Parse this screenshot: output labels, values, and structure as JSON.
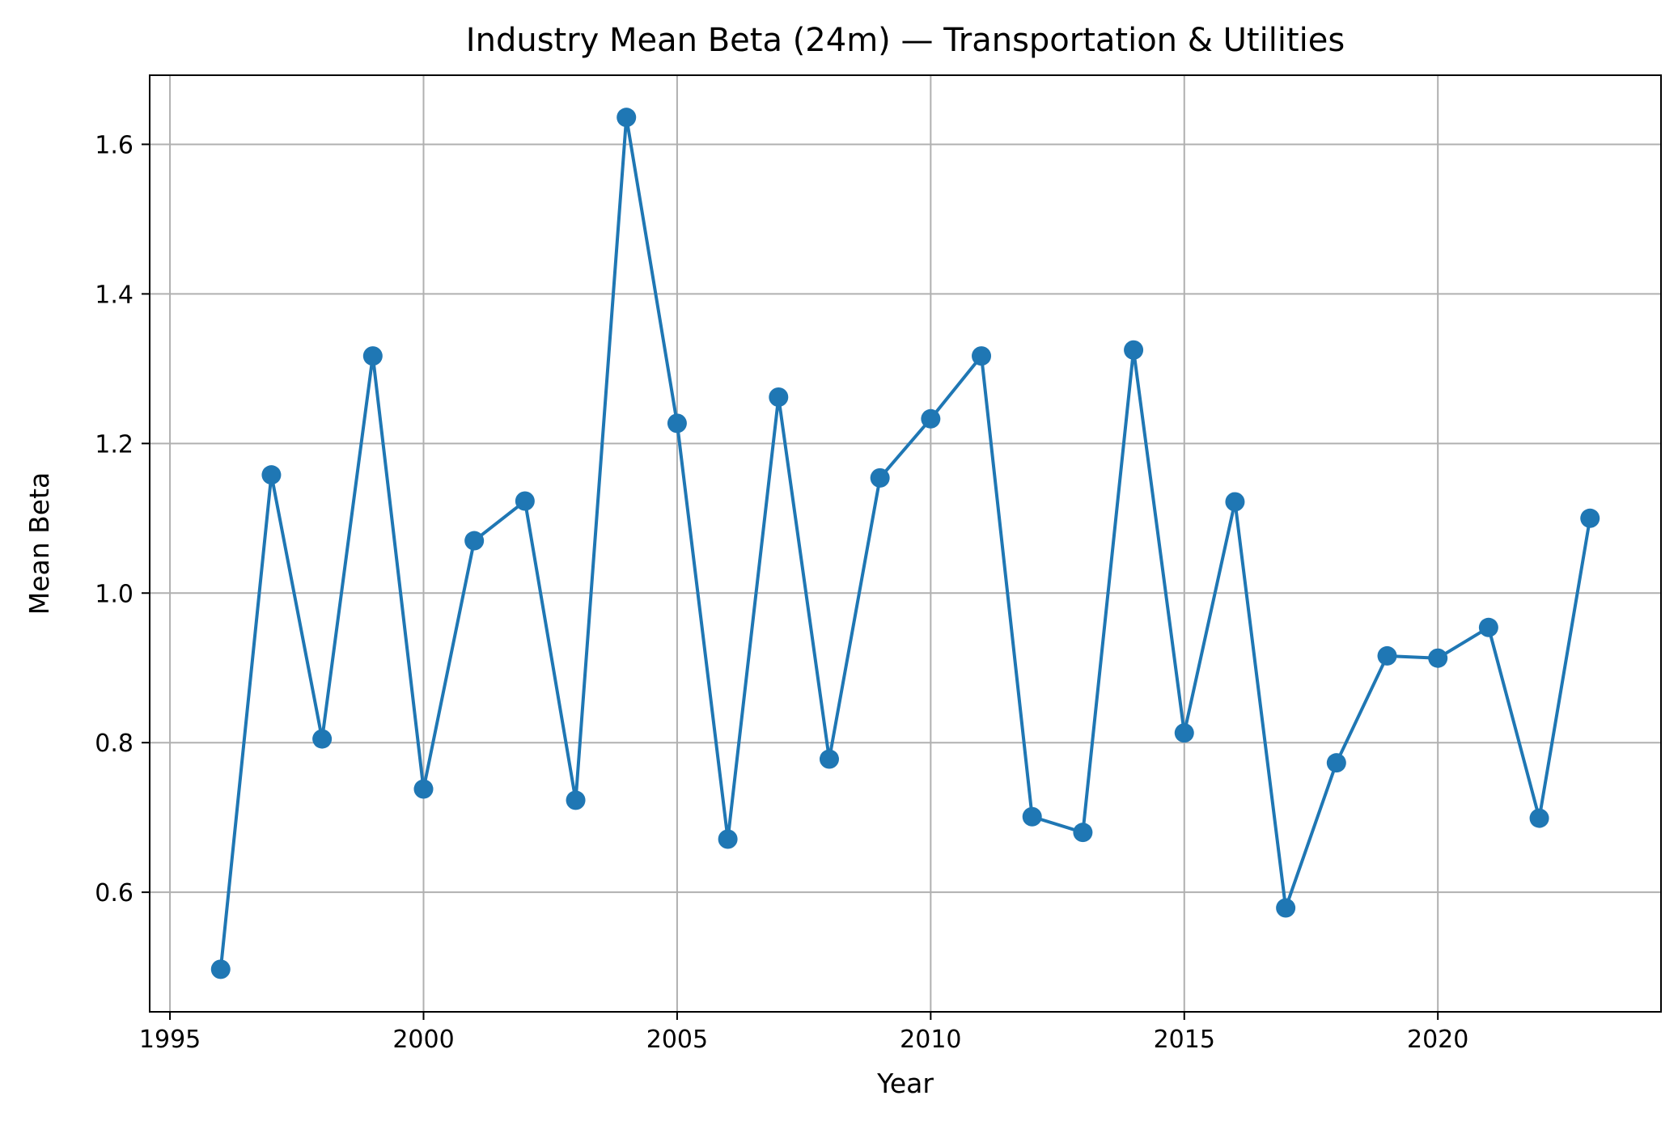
{
  "chart_data": {
    "type": "line",
    "title": "Industry Mean Beta (24m) — Transportation & Utilities",
    "xlabel": "Year",
    "ylabel": "Mean Beta",
    "x": [
      1996,
      1997,
      1998,
      1999,
      2000,
      2001,
      2002,
      2003,
      2004,
      2005,
      2006,
      2007,
      2008,
      2009,
      2010,
      2011,
      2012,
      2013,
      2014,
      2015,
      2016,
      2017,
      2018,
      2019,
      2020,
      2021,
      2022,
      2023
    ],
    "series": [
      {
        "values": [
          0.497,
          1.158,
          0.805,
          1.317,
          0.738,
          1.07,
          1.123,
          0.723,
          1.636,
          1.227,
          0.671,
          1.262,
          0.778,
          1.154,
          1.233,
          1.317,
          0.701,
          0.68,
          1.325,
          0.813,
          1.122,
          0.579,
          0.773,
          0.916,
          0.913,
          0.954,
          0.699,
          1.1
        ],
        "color": "#1f77b4"
      }
    ],
    "xlim": [
      1994.6,
      2024.4
    ],
    "ylim": [
      0.4401,
      1.6924
    ],
    "xticks": [
      1995,
      2000,
      2005,
      2010,
      2015,
      2020
    ],
    "yticks": [
      0.6,
      0.8,
      1.0,
      1.2,
      1.4,
      1.6
    ],
    "ytick_labels": [
      "0.6",
      "0.8",
      "1.0",
      "1.2",
      "1.4",
      "1.6"
    ],
    "grid": true,
    "marker": "circle"
  }
}
